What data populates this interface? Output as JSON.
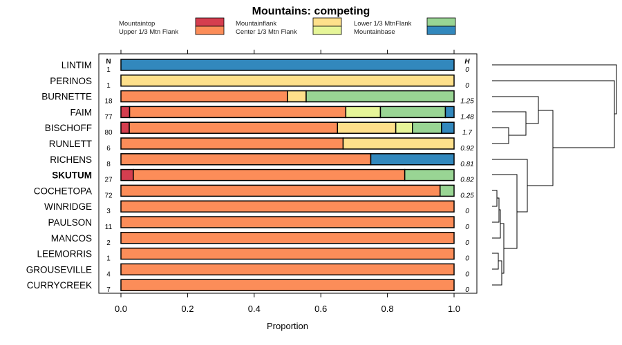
{
  "chart_data": {
    "type": "bar",
    "orientation": "horizontal-stacked",
    "title": "Mountains: competing",
    "xlabel": "Proportion",
    "xlim": [
      0,
      1
    ],
    "xticks": [
      "0.0",
      "0.2",
      "0.4",
      "0.6",
      "0.8",
      "1.0"
    ],
    "n_header": "N",
    "h_header": "H",
    "highlight": "SKUTUM",
    "legend": [
      {
        "name": "Mountaintop",
        "color": "#d53e4f"
      },
      {
        "name": "Upper 1/3 Mtn Flank",
        "color": "#fc8d59"
      },
      {
        "name": "Mountainflank",
        "color": "#fee08b"
      },
      {
        "name": "Center 1/3 Mtn Flank",
        "color": "#e6f598"
      },
      {
        "name": "Lower 1/3 MtnFlank",
        "color": "#99d594"
      },
      {
        "name": "Mountainbase",
        "color": "#3288bd"
      }
    ],
    "categories": [
      "LINTIM",
      "PERINOS",
      "BURNETTE",
      "FAIM",
      "BISCHOFF",
      "RUNLETT",
      "RICHENS",
      "SKUTUM",
      "COCHETOPA",
      "WINRIDGE",
      "PAULSON",
      "MANCOS",
      "LEEMORRIS",
      "GROUSEVILLE",
      "CURRYCREEK"
    ],
    "n": [
      "1",
      "1",
      "18",
      "77",
      "80",
      "6",
      "8",
      "27",
      "72",
      "3",
      "11",
      "2",
      "1",
      "4",
      "7"
    ],
    "h": [
      "0",
      "0",
      "1.25",
      "1.48",
      "1.7",
      "0.92",
      "0.81",
      "0.82",
      "0.25",
      "0",
      "0",
      "0",
      "0",
      "0",
      "0"
    ],
    "series": [
      {
        "name": "Mountaintop",
        "values": [
          0,
          0,
          0,
          0.026,
          0.025,
          0,
          0,
          0.037,
          0,
          0,
          0,
          0,
          0,
          0,
          0
        ]
      },
      {
        "name": "Upper 1/3 Mtn Flank",
        "values": [
          0,
          0,
          0.5,
          0.649,
          0.625,
          0.667,
          0.75,
          0.815,
          0.958,
          1,
          1,
          1,
          1,
          1,
          1
        ]
      },
      {
        "name": "Mountainflank",
        "values": [
          0,
          1,
          0.056,
          0,
          0.175,
          0.333,
          0,
          0,
          0,
          0,
          0,
          0,
          0,
          0,
          0
        ]
      },
      {
        "name": "Center 1/3 Mtn Flank",
        "values": [
          0,
          0,
          0,
          0.104,
          0.05,
          0,
          0,
          0,
          0,
          0,
          0,
          0,
          0,
          0,
          0
        ]
      },
      {
        "name": "Lower 1/3 MtnFlank",
        "values": [
          0,
          0,
          0.444,
          0.195,
          0.0875,
          0,
          0,
          0.148,
          0.042,
          0,
          0,
          0,
          0,
          0,
          0
        ]
      },
      {
        "name": "Mountainbase",
        "values": [
          1,
          0,
          0,
          0.026,
          0.0375,
          0,
          0.25,
          0,
          0,
          0,
          0,
          0,
          0,
          0,
          0
        ]
      }
    ]
  }
}
